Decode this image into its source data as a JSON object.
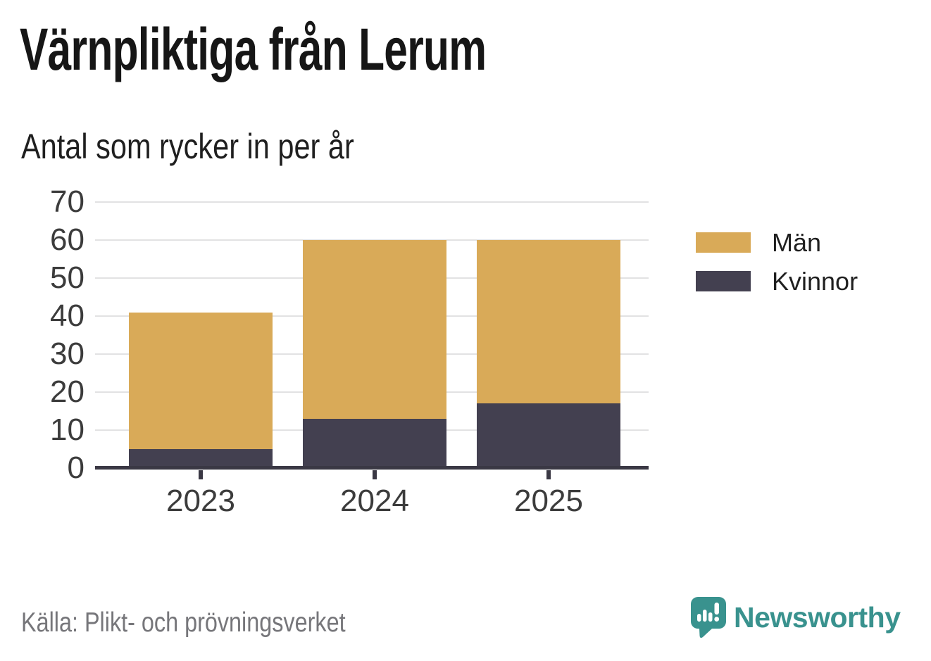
{
  "title": "Värnpliktiga från Lerum",
  "subtitle": "Antal som rycker in per år",
  "source": "Källa: Plikt- och prövningsverket",
  "branding": {
    "name": "Newsworthy",
    "color": "#39928e",
    "icon": "speech-bubble-bar-chart-icon"
  },
  "colors": {
    "men": "#d9aa58",
    "women": "#434050",
    "gridline": "#e2e2e3",
    "axis": "#3a3844",
    "tick_label": "#3c3c3c",
    "source_text": "#76767a"
  },
  "chart_data": {
    "type": "bar",
    "stacked": true,
    "title": "Värnpliktiga från Lerum",
    "subtitle": "Antal som rycker in per år",
    "xlabel": "",
    "ylabel": "",
    "categories": [
      "2023",
      "2024",
      "2025"
    ],
    "series": [
      {
        "name": "Män",
        "color": "#d9aa58",
        "values": [
          36,
          47,
          43
        ]
      },
      {
        "name": "Kvinnor",
        "color": "#434050",
        "values": [
          5,
          13,
          17
        ]
      }
    ],
    "totals": [
      41,
      60,
      60
    ],
    "ylim": [
      0,
      70
    ],
    "yticks": [
      0,
      10,
      20,
      30,
      40,
      50,
      60,
      70
    ],
    "grid": "horizontal",
    "legend_position": "right"
  }
}
